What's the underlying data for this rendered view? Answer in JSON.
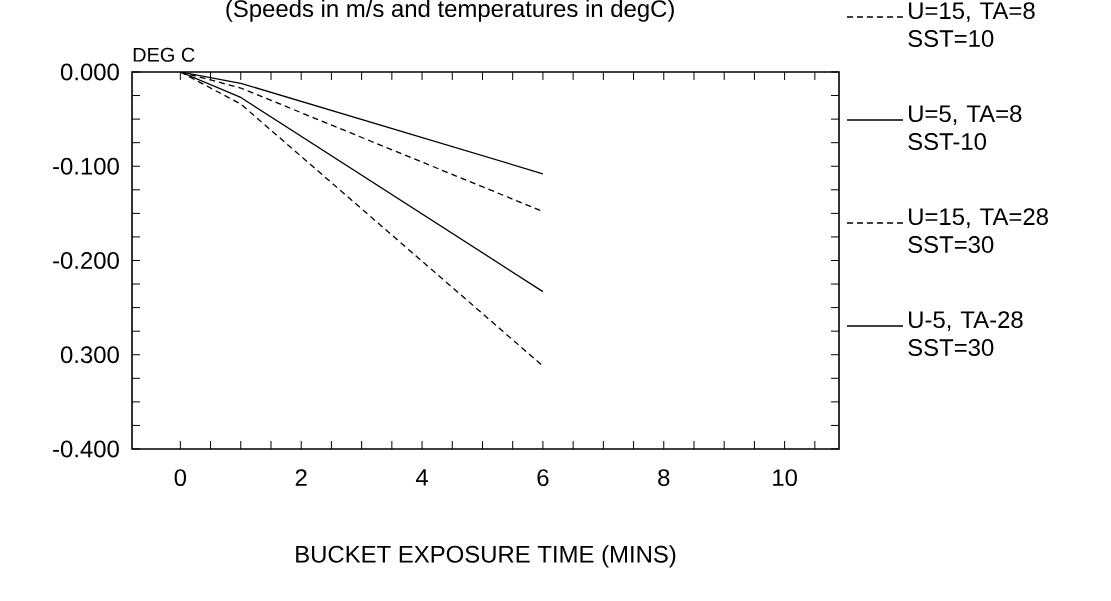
{
  "chart_data": {
    "type": "line",
    "subtitle": "(Speeds in m/s and temperatures in degC)",
    "xlabel": "BUCKET EXPOSURE TIME (MINS)",
    "ylabel": "DEG C",
    "x": [
      0,
      1,
      6
    ],
    "series": [
      {
        "name": "U=15, TA=8 SST=10",
        "color": "#000000",
        "line_style": "dashed",
        "values": [
          0,
          -0.017,
          -0.148
        ]
      },
      {
        "name": "U=5, TA=8 SST-10",
        "color": "#000000",
        "line_style": "solid",
        "values": [
          0,
          -0.012,
          -0.108
        ]
      },
      {
        "name": "U=15, TA=28 SST=30",
        "color": "#000000",
        "line_style": "dashed",
        "values": [
          0,
          -0.034,
          -0.312
        ]
      },
      {
        "name": "U-5, TA-28 SST=30",
        "color": "#000000",
        "line_style": "solid",
        "values": [
          0,
          -0.027,
          -0.233
        ]
      }
    ],
    "xlim": [
      -0.8,
      10.9
    ],
    "ylim": [
      -0.4,
      0
    ],
    "xticks": [
      {
        "value": 0,
        "label": "0"
      },
      {
        "value": 0.5,
        "label": null
      },
      {
        "value": 1,
        "label": null
      },
      {
        "value": 1.5,
        "label": null
      },
      {
        "value": 2,
        "label": "2"
      },
      {
        "value": 2.5,
        "label": null
      },
      {
        "value": 3,
        "label": null
      },
      {
        "value": 3.5,
        "label": null
      },
      {
        "value": 4,
        "label": "4"
      },
      {
        "value": 4.5,
        "label": null
      },
      {
        "value": 5,
        "label": null
      },
      {
        "value": 5.5,
        "label": null
      },
      {
        "value": 6,
        "label": "6"
      },
      {
        "value": 6.5,
        "label": null
      },
      {
        "value": 7,
        "label": null
      },
      {
        "value": 7.5,
        "label": null
      },
      {
        "value": 8,
        "label": "8"
      },
      {
        "value": 8.5,
        "label": null
      },
      {
        "value": 9,
        "label": null
      },
      {
        "value": 9.5,
        "label": null
      },
      {
        "value": 10,
        "label": "10"
      },
      {
        "value": 10.5,
        "label": null
      }
    ],
    "yticks": [
      {
        "value": 0,
        "label": "0.000"
      },
      {
        "value": -0.025,
        "label": null
      },
      {
        "value": -0.05,
        "label": null
      },
      {
        "value": -0.075,
        "label": null
      },
      {
        "value": -0.1,
        "label": "-0.100"
      },
      {
        "value": -0.125,
        "label": null
      },
      {
        "value": -0.15,
        "label": null
      },
      {
        "value": -0.175,
        "label": null
      },
      {
        "value": -0.2,
        "label": "-0.200"
      },
      {
        "value": -0.225,
        "label": null
      },
      {
        "value": -0.25,
        "label": null
      },
      {
        "value": -0.275,
        "label": null
      },
      {
        "value": -0.3,
        "label": "0.300"
      },
      {
        "value": -0.325,
        "label": null
      },
      {
        "value": -0.35,
        "label": null
      },
      {
        "value": -0.375,
        "label": null
      },
      {
        "value": -0.4,
        "label": "-0.400"
      }
    ],
    "grid": false,
    "legend": "right",
    "marker": "none"
  }
}
